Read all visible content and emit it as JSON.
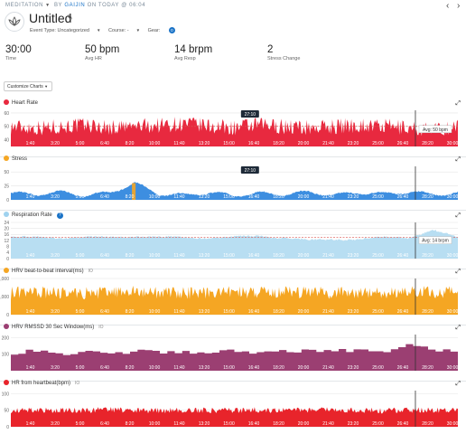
{
  "breadcrumb": {
    "category": "MEDITATION",
    "by": "BY",
    "user": "GAIJIN",
    "on": "ON TODAY @ 06:04"
  },
  "nav": {
    "prev": "‹",
    "next": "›"
  },
  "activity": {
    "title": "Untitled",
    "event_type": "Event Type: Uncategorized",
    "course": "Course: -",
    "gear_label": "Gear:",
    "gear_count": "0"
  },
  "stats": [
    {
      "value": "30:00",
      "label": "Time"
    },
    {
      "value": "50 bpm",
      "label": "Avg HR"
    },
    {
      "value": "14 brpm",
      "label": "Avg Resp"
    },
    {
      "value": "2",
      "label": "Stress Change"
    }
  ],
  "customize_label": "Customize Charts",
  "time_ticks": [
    "1:40",
    "3:20",
    "5:00",
    "6:40",
    "8:20",
    "10:00",
    "11:40",
    "13:20",
    "15:00",
    "16:40",
    "18:20",
    "20:00",
    "21:40",
    "23:20",
    "25:00",
    "26:40",
    "28:20",
    "30:00"
  ],
  "cursor": {
    "time": "27:10",
    "fraction": 0.905
  },
  "colors": {
    "heart": "#e8293f",
    "stress": "#f5a623",
    "stress_fill": "#3d8ee0",
    "resp": "#b8def2",
    "resp_dot": "#9fd2ef",
    "hrv": "#f5a623",
    "rmssd": "#9b3f72",
    "hrhb": "#e8242b"
  },
  "charts": [
    {
      "key": "heart",
      "title": "Heart Rate",
      "y_ticks": [
        "60",
        "50",
        "40"
      ],
      "y_range": [
        35,
        62
      ],
      "avg_label": "Avg: 50 bpm",
      "avg_value": 50,
      "tooltip": true
    },
    {
      "key": "stress",
      "title": "Stress",
      "y_ticks": [
        "50",
        "25",
        "0"
      ],
      "y_range": [
        0,
        60
      ],
      "tooltip": true
    },
    {
      "key": "resp",
      "title": "Respiration Rate",
      "y_ticks": [
        "24",
        "20",
        "16",
        "12",
        "8",
        "4",
        "0"
      ],
      "y_range": [
        0,
        24
      ],
      "avg_label": "Avg: 14 brpm",
      "avg_value": 14
    },
    {
      "key": "hrv",
      "title": "HRV beat-to-beat interval(ms)",
      "io": "IO",
      "y_ticks": [
        "2,000",
        "1,000",
        "0"
      ],
      "y_range": [
        0,
        2000
      ]
    },
    {
      "key": "rmssd",
      "title": "HRV RMSSD 30 Sec Window(ms)",
      "io": "IO",
      "y_ticks": [
        "200",
        "100"
      ],
      "y_range": [
        0,
        220
      ]
    },
    {
      "key": "hrhb",
      "title": "HR from heartbeat(bpm)",
      "io": "IO",
      "y_ticks": [
        "100",
        "50",
        "0"
      ],
      "y_range": [
        0,
        110
      ]
    }
  ],
  "chart_data": [
    {
      "type": "area",
      "title": "Heart Rate",
      "x_unit": "time (mm:ss)",
      "x": [
        "0:00",
        "1:40",
        "3:20",
        "5:00",
        "6:40",
        "8:20",
        "10:00",
        "11:40",
        "13:20",
        "15:00",
        "16:40",
        "18:20",
        "20:00",
        "21:40",
        "23:20",
        "25:00",
        "26:40",
        "28:20",
        "30:00"
      ],
      "values": [
        50,
        49,
        50,
        51,
        49,
        50,
        51,
        52,
        50,
        49,
        51,
        50,
        49,
        50,
        51,
        50,
        49,
        47,
        50
      ],
      "ylim": [
        35,
        62
      ],
      "average": 50
    },
    {
      "type": "area",
      "title": "Stress",
      "x_unit": "time (mm:ss)",
      "x": [
        "0:00",
        "1:40",
        "3:20",
        "5:00",
        "6:40",
        "8:20",
        "10:00",
        "11:40",
        "13:20",
        "15:00",
        "16:40",
        "18:20",
        "20:00",
        "21:40",
        "23:20",
        "25:00",
        "26:40",
        "28:20",
        "30:00"
      ],
      "values": [
        12,
        10,
        14,
        8,
        13,
        30,
        10,
        9,
        13,
        8,
        12,
        10,
        14,
        9,
        13,
        11,
        14,
        10,
        12
      ],
      "ylim": [
        0,
        60
      ]
    },
    {
      "type": "area",
      "title": "Respiration Rate",
      "x_unit": "time (mm:ss)",
      "x": [
        "0:00",
        "1:40",
        "3:20",
        "5:00",
        "6:40",
        "8:20",
        "10:00",
        "11:40",
        "13:20",
        "15:00",
        "16:40",
        "18:20",
        "20:00",
        "21:40",
        "23:20",
        "25:00",
        "26:40",
        "28:20",
        "30:00"
      ],
      "values": [
        14,
        14,
        14,
        14,
        14,
        15,
        14,
        14,
        14,
        14,
        15,
        14,
        12,
        13,
        13,
        14,
        14,
        19,
        14
      ],
      "ylim": [
        0,
        24
      ],
      "average": 14
    },
    {
      "type": "area",
      "title": "HRV beat-to-beat interval(ms)",
      "x_unit": "time (mm:ss)",
      "x": [
        "0:00",
        "1:40",
        "3:20",
        "5:00",
        "6:40",
        "8:20",
        "10:00",
        "11:40",
        "13:20",
        "15:00",
        "16:40",
        "18:20",
        "20:00",
        "21:40",
        "23:20",
        "25:00",
        "26:40",
        "28:20",
        "30:00"
      ],
      "values": [
        1200,
        1250,
        1220,
        1180,
        1240,
        1260,
        1210,
        1190,
        1230,
        1250,
        1200,
        1220,
        1240,
        1210,
        1230,
        1190,
        1250,
        1270,
        1220
      ],
      "ylim": [
        0,
        2000
      ]
    },
    {
      "type": "area",
      "title": "HRV RMSSD 30 Sec Window(ms)",
      "x_unit": "time (mm:ss)",
      "x": [
        "0:00",
        "1:40",
        "3:20",
        "5:00",
        "6:40",
        "8:20",
        "10:00",
        "11:40",
        "13:20",
        "15:00",
        "16:40",
        "18:20",
        "20:00",
        "21:40",
        "23:20",
        "25:00",
        "26:40",
        "28:20",
        "30:00"
      ],
      "values": [
        110,
        120,
        105,
        115,
        100,
        125,
        110,
        118,
        108,
        122,
        112,
        120,
        125,
        118,
        130,
        115,
        160,
        120,
        118
      ],
      "ylim": [
        0,
        220
      ]
    },
    {
      "type": "area",
      "title": "HR from heartbeat(bpm)",
      "x_unit": "time (mm:ss)",
      "x": [
        "0:00",
        "1:40",
        "3:20",
        "5:00",
        "6:40",
        "8:20",
        "10:00",
        "11:40",
        "13:20",
        "15:00",
        "16:40",
        "18:20",
        "20:00",
        "21:40",
        "23:20",
        "25:00",
        "26:40",
        "28:20",
        "30:00"
      ],
      "values": [
        50,
        51,
        49,
        50,
        52,
        50,
        49,
        51,
        50,
        50,
        51,
        49,
        50,
        52,
        50,
        49,
        51,
        50,
        50
      ],
      "ylim": [
        0,
        110
      ]
    }
  ]
}
